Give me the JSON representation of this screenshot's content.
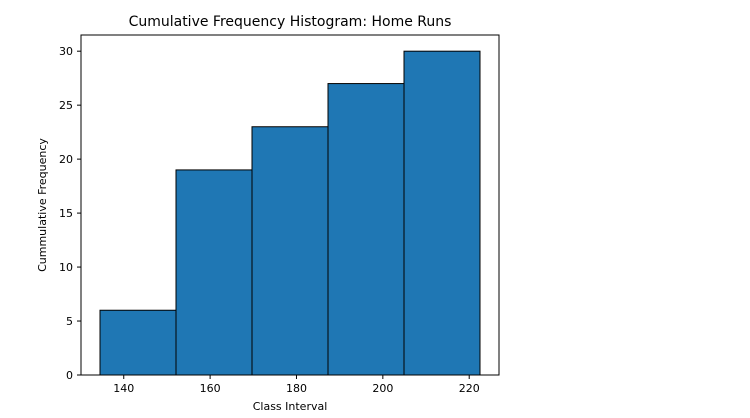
{
  "chart_data": {
    "type": "bar",
    "title": "Cumulative Frequency Histogram: Home Runs",
    "xlabel": "Class Interval",
    "ylabel": "Cummulative Frequency",
    "bins": [
      {
        "start": 134.5,
        "end": 152.1,
        "value": 6
      },
      {
        "start": 152.1,
        "end": 169.7,
        "value": 19
      },
      {
        "start": 169.7,
        "end": 187.3,
        "value": 23
      },
      {
        "start": 187.3,
        "end": 204.9,
        "value": 27
      },
      {
        "start": 204.9,
        "end": 222.5,
        "value": 30
      }
    ],
    "values": [
      6,
      19,
      23,
      27,
      30
    ],
    "xlim": [
      130.1,
      226.9
    ],
    "ylim": [
      0,
      31.5
    ],
    "x_ticks": [
      "140",
      "160",
      "180",
      "200",
      "220"
    ],
    "y_ticks": [
      "0",
      "5",
      "10",
      "15",
      "20",
      "25",
      "30"
    ],
    "bar_color": "#1f77b4",
    "edge_color": "#000000",
    "grid": false,
    "legend": "none"
  }
}
